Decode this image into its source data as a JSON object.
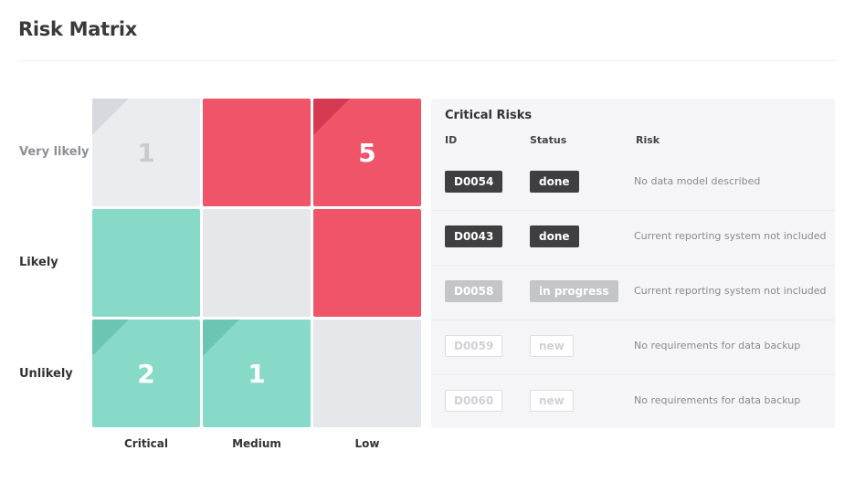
{
  "page": {
    "title": "Risk Matrix"
  },
  "matrix": {
    "row_labels": [
      "Very likely",
      "Likely",
      "Unlikely"
    ],
    "col_labels": [
      "Critical",
      "Medium",
      "Low"
    ],
    "cells": [
      [
        {
          "count": "1",
          "color": "#ebecef"
        },
        {
          "count": "",
          "color": "#ef5468"
        },
        {
          "count": "5",
          "color": "#ef5468"
        }
      ],
      [
        {
          "count": "",
          "color": "#88dac8"
        },
        {
          "count": "",
          "color": "#e6e7ea"
        },
        {
          "count": "",
          "color": "#ef5468"
        }
      ],
      [
        {
          "count": "2",
          "color": "#88dac8"
        },
        {
          "count": "1",
          "color": "#88dac8"
        },
        {
          "count": "",
          "color": "#e6e7ea"
        }
      ]
    ]
  },
  "panel": {
    "title": "Critical Risks",
    "headers": {
      "id": "ID",
      "status": "Status",
      "risk": "Risk"
    },
    "rows": [
      {
        "id": "D0054",
        "status": "done",
        "risk": "No data model described"
      },
      {
        "id": "D0043",
        "status": "done",
        "risk": "Current reporting system not included"
      },
      {
        "id": "D0058",
        "status": "in progress",
        "risk": "Current reporting system not included"
      },
      {
        "id": "D0059",
        "status": "new",
        "risk": "No requirements for data backup"
      },
      {
        "id": "D0060",
        "status": "new",
        "risk": "No requirements for data backup"
      }
    ]
  },
  "colors": {
    "high": "#ef5468",
    "low": "#88dac8",
    "neutral": "#e6e7ea",
    "badge_done": "#3f3f41",
    "badge_in_progress": "#c4c5c9",
    "badge_new_border": "#dcdde1"
  }
}
